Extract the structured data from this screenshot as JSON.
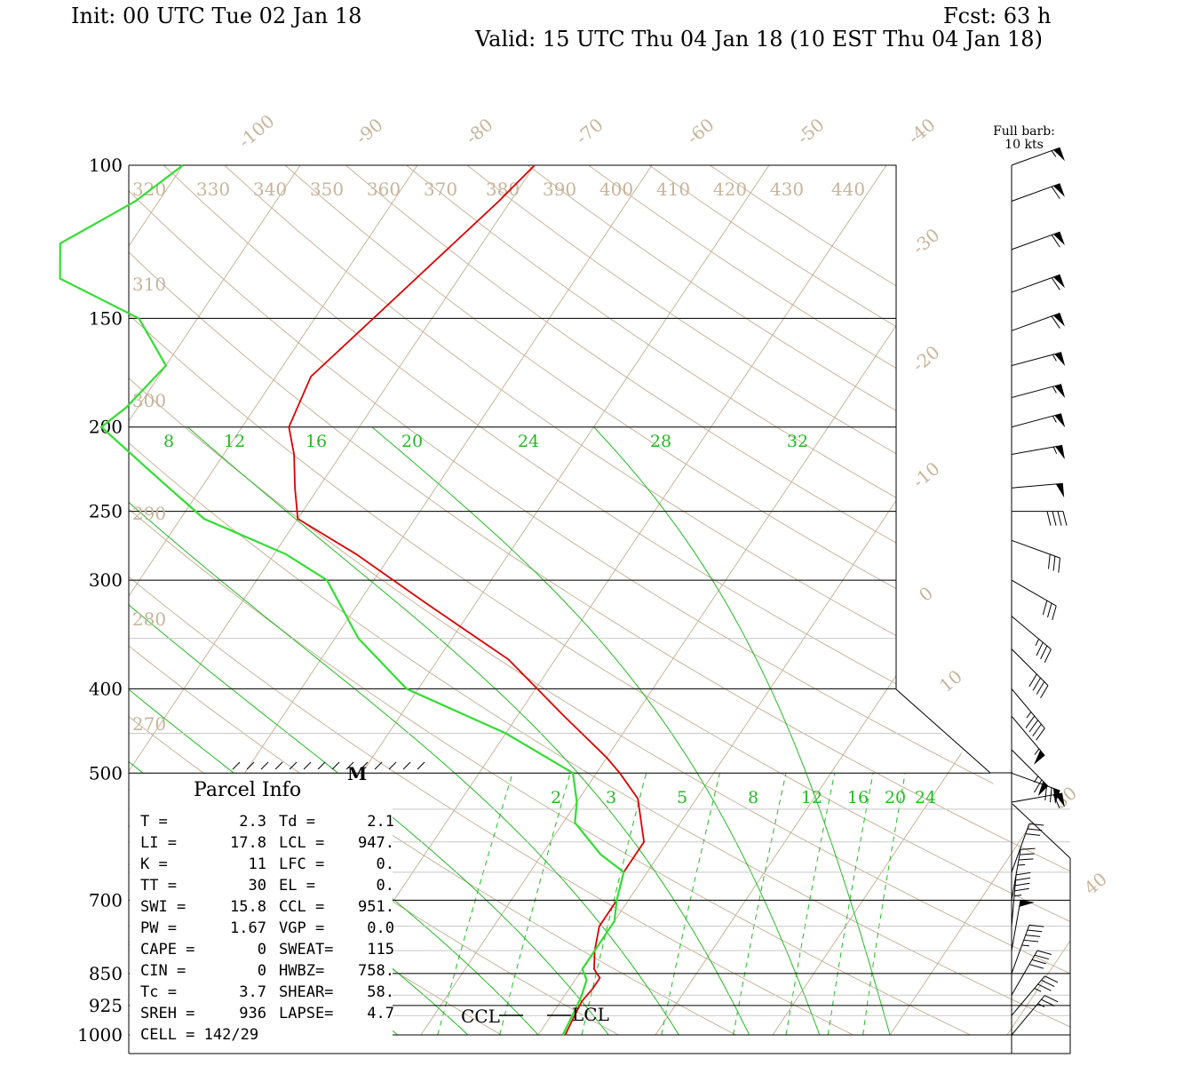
{
  "header": {
    "init": "Init: 00 UTC Tue 02 Jan 18",
    "fcst": "Fcst:   63 h",
    "valid": "Valid: 15 UTC Thu 04 Jan 18 (10 EST Thu 04 Jan 18)"
  },
  "barb_legend": {
    "line1": "Full barb:",
    "line2": "10 kts"
  },
  "chart_data": {
    "type": "line",
    "pressure_labels": [
      "100",
      "150",
      "200",
      "250",
      "300",
      "400",
      "500",
      "700",
      "850",
      "925",
      "1000"
    ],
    "temperature_labels": [
      "-100",
      "-90",
      "-80",
      "-70",
      "-60",
      "-50",
      "-40",
      "-30",
      "-20",
      "-10",
      "0",
      "10",
      "30",
      "40"
    ],
    "theta_labels": [
      "320",
      "330",
      "340",
      "350",
      "360",
      "370",
      "380",
      "390",
      "400",
      "410",
      "420",
      "430",
      "440",
      "310",
      "300",
      "290",
      "280",
      "270"
    ],
    "mixing_ratio_upper": [
      "8",
      "12",
      "16",
      "20",
      "24",
      "28",
      "32"
    ],
    "mixing_ratio_lower": [
      "2",
      "3",
      "5",
      "8",
      "12",
      "16",
      "20",
      "24"
    ],
    "series": [
      {
        "name": "Temperature",
        "color": "#dd0000",
        "points": [
          [
            100,
            -50
          ],
          [
            110,
            -51
          ],
          [
            150,
            -55
          ],
          [
            175,
            -57
          ],
          [
            200,
            -56
          ],
          [
            215,
            -54
          ],
          [
            235,
            -52
          ],
          [
            255,
            -50
          ],
          [
            280,
            -43
          ],
          [
            320,
            -34
          ],
          [
            370,
            -24
          ],
          [
            430,
            -16
          ],
          [
            480,
            -10
          ],
          [
            500,
            -8
          ],
          [
            535,
            -5
          ],
          [
            600,
            -2
          ],
          [
            650,
            -2
          ],
          [
            700,
            -1
          ],
          [
            750,
            -1
          ],
          [
            800,
            0
          ],
          [
            840,
            1
          ],
          [
            860,
            2
          ],
          [
            885,
            2
          ],
          [
            915,
            1.8
          ],
          [
            950,
            2
          ],
          [
            1000,
            2.3
          ]
        ]
      },
      {
        "name": "Dew Point",
        "color": "#33dd33",
        "points": [
          [
            100,
            -80
          ],
          [
            110,
            -82
          ],
          [
            123,
            -86
          ],
          [
            135,
            -84
          ],
          [
            150,
            -75
          ],
          [
            170,
            -70
          ],
          [
            190,
            -71
          ],
          [
            200,
            -72
          ],
          [
            230,
            -64
          ],
          [
            255,
            -58
          ],
          [
            280,
            -49
          ],
          [
            300,
            -44
          ],
          [
            350,
            -38
          ],
          [
            400,
            -31
          ],
          [
            450,
            -20
          ],
          [
            500,
            -12
          ],
          [
            540,
            -10
          ],
          [
            570,
            -9
          ],
          [
            620,
            -5
          ],
          [
            650,
            -2
          ],
          [
            700,
            -1
          ],
          [
            740,
            0
          ],
          [
            800,
            0
          ],
          [
            840,
            0
          ],
          [
            865,
            1
          ],
          [
            905,
            1.5
          ],
          [
            950,
            1.8
          ],
          [
            1000,
            2.1
          ]
        ]
      }
    ],
    "wind_barbs": [
      {
        "p": 100,
        "dir": 250,
        "spd": 55
      },
      {
        "p": 110,
        "dir": 250,
        "spd": 60
      },
      {
        "p": 125,
        "dir": 250,
        "spd": 60
      },
      {
        "p": 140,
        "dir": 250,
        "spd": 60
      },
      {
        "p": 155,
        "dir": 250,
        "spd": 60
      },
      {
        "p": 170,
        "dir": 255,
        "spd": 55
      },
      {
        "p": 185,
        "dir": 255,
        "spd": 55
      },
      {
        "p": 200,
        "dir": 255,
        "spd": 55
      },
      {
        "p": 215,
        "dir": 260,
        "spd": 55
      },
      {
        "p": 235,
        "dir": 265,
        "spd": 50
      },
      {
        "p": 250,
        "dir": 270,
        "spd": 40
      },
      {
        "p": 270,
        "dir": 290,
        "spd": 30
      },
      {
        "p": 300,
        "dir": 300,
        "spd": 30
      },
      {
        "p": 330,
        "dir": 310,
        "spd": 35
      },
      {
        "p": 360,
        "dir": 315,
        "spd": 40
      },
      {
        "p": 400,
        "dir": 320,
        "spd": 45
      },
      {
        "p": 430,
        "dir": 320,
        "spd": 55
      },
      {
        "p": 470,
        "dir": 315,
        "spd": 65
      },
      {
        "p": 500,
        "dir": 290,
        "spd": 70
      },
      {
        "p": 540,
        "dir": 260,
        "spd": 60
      },
      {
        "p": 650,
        "dir": 200,
        "spd": 30
      },
      {
        "p": 700,
        "dir": 190,
        "spd": 35
      },
      {
        "p": 750,
        "dir": 185,
        "spd": 45
      },
      {
        "p": 800,
        "dir": 190,
        "spd": 50
      },
      {
        "p": 850,
        "dir": 200,
        "spd": 45
      },
      {
        "p": 900,
        "dir": 210,
        "spd": 40
      },
      {
        "p": 950,
        "dir": 220,
        "spd": 35
      },
      {
        "p": 1000,
        "dir": 220,
        "spd": 25
      }
    ]
  },
  "parcel": {
    "title": "Parcel  Info",
    "rows": [
      [
        "T  =",
        "2.3",
        "Td =",
        "2.1"
      ],
      [
        "LI =",
        "17.8",
        "LCL =",
        "947."
      ],
      [
        "K  =",
        "11",
        "LFC =",
        "0."
      ],
      [
        "TT =",
        "30",
        "EL  =",
        "0."
      ],
      [
        "SWI =",
        "15.8",
        "CCL =",
        "951."
      ],
      [
        "PW =",
        "1.67",
        "VGP =",
        "0.0"
      ],
      [
        "CAPE =",
        "0",
        "SWEAT=",
        "115"
      ],
      [
        "CIN =",
        "0",
        "HWBZ=",
        "758."
      ],
      [
        "Tc =",
        "3.7",
        "SHEAR=",
        "58."
      ],
      [
        "SREH =",
        "936",
        "LAPSE=",
        "4.7"
      ],
      [
        "CELL = 142/29",
        "",
        "",
        ""
      ]
    ]
  },
  "markers": {
    "ccl": "CCL",
    "lcl": "LCL",
    "m": "M"
  },
  "colors": {
    "temperature": "#dd0000",
    "dewpoint": "#33dd33",
    "grid_tan": "#c8b49a",
    "mixing": "#22bb22"
  }
}
